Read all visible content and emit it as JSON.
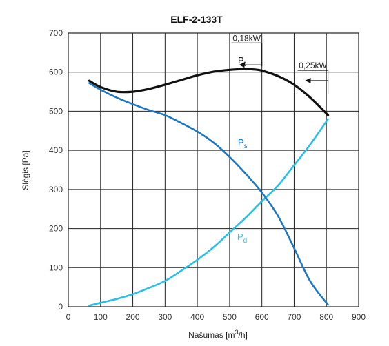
{
  "chart_data": {
    "type": "line",
    "title": "ELF-2-133T",
    "xlabel": "Našumas",
    "xlabel_unit_base": "[m",
    "xlabel_unit_sup": "3",
    "xlabel_unit_end": "/h]",
    "ylabel": "Slėgis [Pa]",
    "xlim": [
      0,
      900
    ],
    "ylim": [
      0,
      700
    ],
    "x_ticks": [
      0,
      100,
      200,
      300,
      400,
      500,
      600,
      700,
      800,
      900
    ],
    "y_ticks": [
      0,
      100,
      200,
      300,
      400,
      500,
      600,
      700
    ],
    "grid": true,
    "series": [
      {
        "name": "Pt",
        "label_base": "P",
        "label_sub": "t",
        "color": "#111111",
        "x": [
          65,
          100,
          150,
          200,
          250,
          300,
          350,
          400,
          450,
          500,
          550,
          575,
          600,
          650,
          700,
          750,
          805
        ],
        "y": [
          578,
          562,
          550,
          550,
          557,
          568,
          580,
          592,
          601,
          606,
          608,
          607,
          604,
          590,
          568,
          535,
          490
        ]
      },
      {
        "name": "Ps",
        "label_base": "P",
        "label_sub": "s",
        "color": "#1f78be",
        "x": [
          65,
          100,
          150,
          200,
          250,
          300,
          350,
          400,
          450,
          500,
          550,
          600,
          650,
          700,
          750,
          805
        ],
        "y": [
          572,
          555,
          535,
          518,
          503,
          490,
          470,
          448,
          420,
          383,
          340,
          292,
          232,
          150,
          65,
          5
        ]
      },
      {
        "name": "Pd",
        "label_base": "P",
        "label_sub": "d",
        "color": "#29bfe8",
        "x": [
          65,
          100,
          150,
          200,
          250,
          300,
          350,
          400,
          450,
          500,
          550,
          600,
          650,
          700,
          750,
          805
        ],
        "y": [
          3,
          10,
          20,
          32,
          48,
          66,
          92,
          120,
          152,
          190,
          228,
          270,
          310,
          362,
          415,
          480
        ]
      }
    ],
    "annotations": [
      {
        "text": "0,18kW",
        "x": 600,
        "y": 650
      },
      {
        "text": "0,25kW",
        "x": 805,
        "y": 580
      }
    ]
  }
}
